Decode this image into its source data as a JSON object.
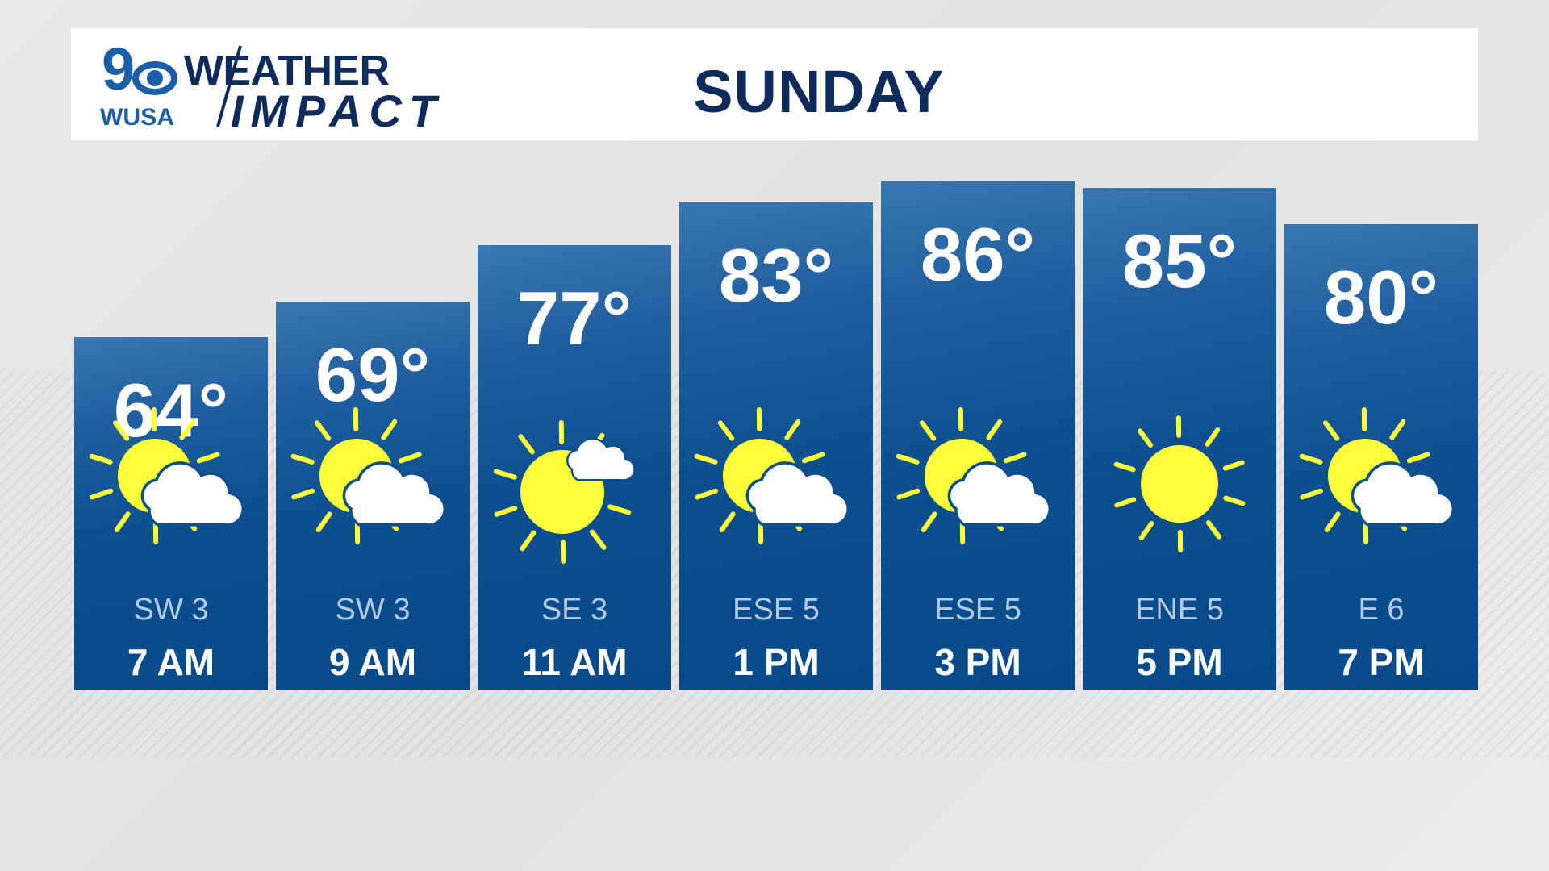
{
  "header": {
    "logo": {
      "station": "WUSA",
      "channel": "9",
      "brand_line1": "WEATHER",
      "brand_line2": "IMPACT"
    },
    "title": "SUNDAY"
  },
  "colors": {
    "card_top": "#3a78b2",
    "card_bottom": "#074a8a",
    "sun": "#ffff3c",
    "title": "#0f2b5c",
    "logo_blue": "#1a5ea8"
  },
  "forecast": [
    {
      "time": "7 AM",
      "temp": "64°",
      "wind": "SW 3",
      "icon": "partly-sunny-icon"
    },
    {
      "time": "9 AM",
      "temp": "69°",
      "wind": "SW 3",
      "icon": "partly-sunny-icon"
    },
    {
      "time": "11 AM",
      "temp": "77°",
      "wind": "SE 3",
      "icon": "mostly-sunny-icon"
    },
    {
      "time": "1 PM",
      "temp": "83°",
      "wind": "ESE 5",
      "icon": "partly-sunny-icon"
    },
    {
      "time": "3 PM",
      "temp": "86°",
      "wind": "ESE 5",
      "icon": "partly-sunny-icon"
    },
    {
      "time": "5 PM",
      "temp": "85°",
      "wind": "ENE 5",
      "icon": "sunny-icon"
    },
    {
      "time": "7 PM",
      "temp": "80°",
      "wind": "E 6",
      "icon": "partly-sunny-icon"
    }
  ]
}
